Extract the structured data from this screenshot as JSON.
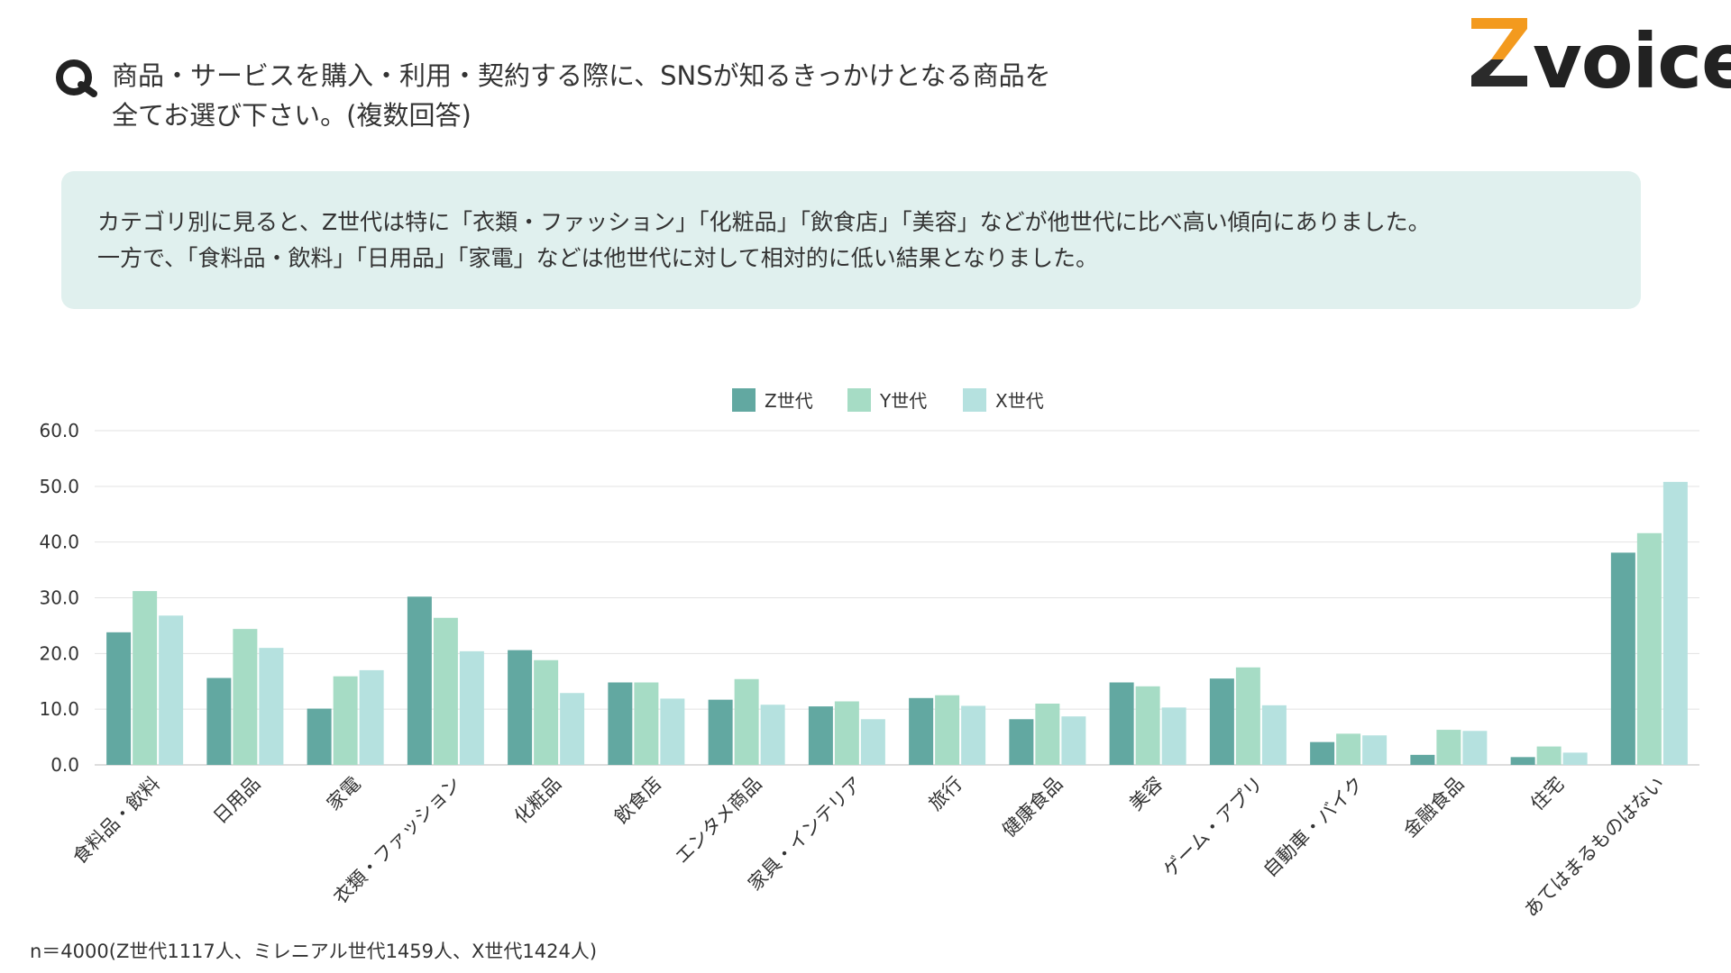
{
  "question": {
    "line1": "商品・サービスを購入・利用・契約する際に、SNSが知るきっかけとなる商品を",
    "line2": "全てお選び下さい。(複数回答)"
  },
  "logo": {
    "text": "voice",
    "accent_color": "#f39a1e",
    "dark_color": "#2b2b2b"
  },
  "summary": {
    "line1": "カテゴリ別に見ると、Z世代は特に「衣類・ファッション」「化粧品」「飲食店」「美容」などが他世代に比べ高い傾向にありました。",
    "line2": "一方で、「食料品・飲料」「日用品」「家電」などは他世代に対して相対的に低い結果となりました。"
  },
  "footnote": "n＝4000(Z世代1117人、ミレニアル世代1459人、X世代1424人)",
  "chart_data": {
    "type": "bar",
    "categories": [
      "食料品・飲料",
      "日用品",
      "家電",
      "衣類・ファッション",
      "化粧品",
      "飲食店",
      "エンタメ商品",
      "家具・インテリア",
      "旅行",
      "健康食品",
      "美容",
      "ゲーム・アプリ",
      "自動車・バイク",
      "金融食品",
      "住宅",
      "あてはまるものはない"
    ],
    "series": [
      {
        "name": "Z世代",
        "color": "#62a8a1",
        "values": [
          23.8,
          15.6,
          10.1,
          30.2,
          20.6,
          14.8,
          11.7,
          10.5,
          12.0,
          8.2,
          14.8,
          15.5,
          4.1,
          1.8,
          1.4,
          38.1
        ]
      },
      {
        "name": "Y世代",
        "color": "#a6dcc5",
        "values": [
          31.2,
          24.4,
          15.9,
          26.4,
          18.8,
          14.8,
          15.4,
          11.4,
          12.5,
          11.0,
          14.1,
          17.5,
          5.6,
          6.3,
          3.3,
          41.6
        ]
      },
      {
        "name": "X世代",
        "color": "#b5e1df",
        "values": [
          26.8,
          21.0,
          17.0,
          20.4,
          12.9,
          11.9,
          10.8,
          8.2,
          10.6,
          8.7,
          10.3,
          10.7,
          5.3,
          6.1,
          2.2,
          50.8
        ]
      }
    ],
    "ylim": [
      0,
      60
    ],
    "yticks": [
      "0.0",
      "10.0",
      "20.0",
      "30.0",
      "40.0",
      "50.0",
      "60.0"
    ],
    "grid": true,
    "legend": "top-center",
    "xlabel": "",
    "ylabel": "",
    "title": ""
  }
}
